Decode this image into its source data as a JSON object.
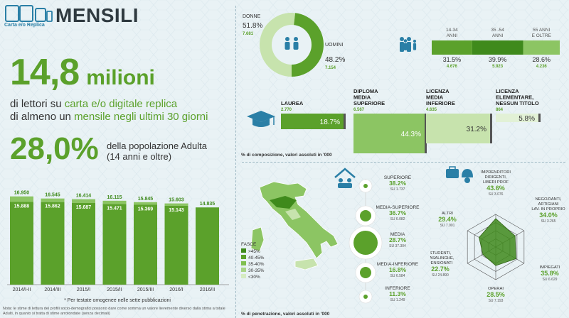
{
  "header": {
    "brand_label": "Carta e/o Replica",
    "title": "MENSILI"
  },
  "headline": {
    "readers_value": "14,8",
    "readers_unit": "milioni",
    "line1_a": "di lettori su ",
    "line1_b": "carta e/o digitale replica",
    "line2_a": "di almeno un ",
    "line2_b": "mensile negli ultimi 30 giorni",
    "pct": "28,0%",
    "pct_desc1": "della popolazione Adulta",
    "pct_desc2": "(14 anni e oltre)"
  },
  "chart_data": [
    {
      "type": "bar",
      "title": "",
      "categories": [
        "2014/I-II",
        "2014/III",
        "2015/I",
        "2015/II",
        "2015/III",
        "2016/I",
        "2016/II"
      ],
      "series": [
        {
          "values": [
            16950,
            16545,
            16414,
            16115,
            15845,
            15603,
            14835
          ]
        },
        {
          "values": [
            15888,
            15862,
            15687,
            15471,
            15369,
            15143,
            null
          ]
        }
      ],
      "value_labels_top": [
        "16.950",
        "16.545",
        "16.414",
        "16.115",
        "15.845",
        "15.603",
        "14.835"
      ],
      "value_labels_inner": [
        "15.888",
        "15.862",
        "15.687",
        "15.471",
        "15.369",
        "15.143",
        ""
      ],
      "footnote": "* Per testate omogenee nelle sette pubblicazioni"
    },
    {
      "type": "pie",
      "slices": [
        {
          "label": "DONNE",
          "pct": "51.8%",
          "value": "7.681",
          "share": 51.8
        },
        {
          "label": "UOMINI",
          "pct": "48.2%",
          "value": "7.154",
          "share": 48.2
        }
      ]
    },
    {
      "type": "bar",
      "orientation": "horizontal-stacked",
      "segments": [
        {
          "label": "14-34 ANNI",
          "pct": "31.5%",
          "value": "4.676",
          "share": 31.5
        },
        {
          "label": "35 -54 ANNI",
          "pct": "39.9%",
          "value": "5.923",
          "share": 39.9
        },
        {
          "label": "55 ANNI E OLTRE",
          "pct": "28.6%",
          "value": "4.236",
          "share": 28.6
        }
      ]
    },
    {
      "type": "bar",
      "caption": "% di composizione, valori assoluti in '000",
      "items": [
        {
          "label": [
            "LAUREA"
          ],
          "value": "2.770",
          "pct": "18.7%",
          "share": 18.7
        },
        {
          "label": [
            "DIPLOMA",
            "MEDIA",
            "SUPERIORE"
          ],
          "value": "6.567",
          "pct": "44.3%",
          "share": 44.3
        },
        {
          "label": [
            "LICENZA",
            "MEDIA",
            "INFERIORE"
          ],
          "value": "4.635",
          "pct": "31.2%",
          "share": 31.2
        },
        {
          "label": [
            "LICENZA",
            "ELEMENTARE,",
            "NESSUN TITOLO"
          ],
          "value": "864",
          "pct": "5.8%",
          "share": 5.8
        }
      ]
    },
    {
      "type": "scatter",
      "caption": "% di penetrazione, valori assoluti in '000",
      "items": [
        {
          "label": [
            "SUPERIORE"
          ],
          "pct": "38.2%",
          "su": "SU 1.737",
          "value": 38.2
        },
        {
          "label": [
            "MEDIA-SUPERIORE"
          ],
          "pct": "36.7%",
          "su": "SU 6.082",
          "value": 36.7
        },
        {
          "label": [
            "MEDIA"
          ],
          "pct": "28.7%",
          "su": "SU 37.304",
          "value": 28.7
        },
        {
          "label": [
            "MEDIA-INFERIORE"
          ],
          "pct": "16.8%",
          "su": "SU 6.584",
          "value": 16.8
        },
        {
          "label": [
            "INFERIORE"
          ],
          "pct": "11.3%",
          "su": "SU 1.249",
          "value": 11.3
        }
      ],
      "legend_title": "FASCE",
      "legend": [
        ">45%",
        "40-45%",
        "35-40%",
        "30-35%",
        "<30%"
      ],
      "legend_colors": [
        "#3f8a1c",
        "#5ba12b",
        "#7fbf4f",
        "#a9d488",
        "#d5ebc2"
      ]
    },
    {
      "type": "radar",
      "items": [
        {
          "label": [
            "IMPRENDITORI",
            "DIRIGENTI,",
            "LIBERI PROF"
          ],
          "pct": "43.6%",
          "su": "SU 3.076",
          "value": 43.6
        },
        {
          "label": [
            "NEGOZIANTI,",
            "ARTIGIANI",
            "LAV. IN PROPRIO"
          ],
          "pct": "34.0%",
          "su": "SU 3.265",
          "value": 34.0
        },
        {
          "label": [
            "IMPIEGATI"
          ],
          "pct": "35.8%",
          "su": "SU 6.629",
          "value": 35.8
        },
        {
          "label": [
            "OPERAI"
          ],
          "pct": "28.5%",
          "su": "SU 7.193",
          "value": 28.5
        },
        {
          "label": [
            "STUDENTI,",
            "CASALINGHE,",
            "PENSIONATI"
          ],
          "pct": "22.7%",
          "su": "SU 24.890",
          "value": 22.7
        },
        {
          "label": [
            "ALTRI"
          ],
          "pct": "29.4%",
          "su": "SU 7.901",
          "value": 29.4
        }
      ]
    }
  ],
  "footer_note": "Nota: le stime di lettura dei profili socio-demografici possono dare come somma un valore lievemente diverso dalla stima a totale Adulti, in quanto si tratta di stime arrotondate (senza decimali)",
  "colors": {
    "green": "#5ba12b",
    "dark_green": "#3f8a1c",
    "light_green": "#8cc563",
    "pale_green": "#c7e3ad",
    "dark_bar": "#555555",
    "bg": "#e9f2f5"
  },
  "icons": {
    "brand": "newspaper-devices-icon",
    "gender": "couple-icon",
    "age": "family-icon",
    "education": "graduation-cap-icon",
    "home": "house-family-icon",
    "work": "briefcase-helmet-icon"
  }
}
